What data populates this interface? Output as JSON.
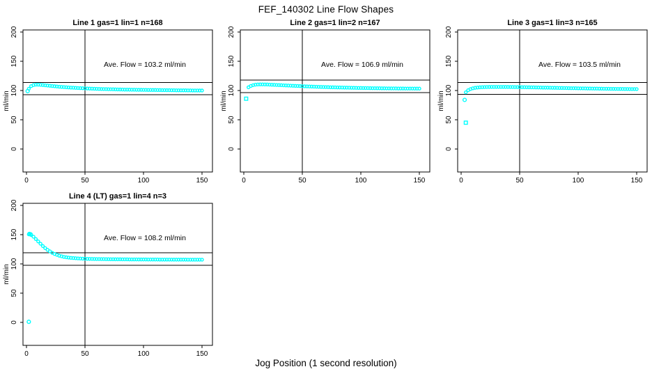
{
  "figure": {
    "title": "FEF_140302  Line Flow Shapes",
    "xlabel": "Jog Position (1 second resolution)",
    "ylabel": "ml/min",
    "background": "#ffffff",
    "point_color": "#00ffff",
    "line_color": "#000000"
  },
  "axes": {
    "x_ticks": [
      0,
      50,
      100,
      150
    ],
    "y_ticks": [
      0,
      50,
      100,
      150,
      200
    ],
    "xlim": [
      -3,
      159
    ],
    "ylim": [
      -40,
      204
    ],
    "grid": false
  },
  "chart_data": [
    {
      "type": "scatter",
      "title": "Line 1 gas=1 lin=1 n=168",
      "annotation": "Ave. Flow =  103.2  ml/min",
      "ave_flow_ml_min": 103.2,
      "n": 168,
      "vline_x": 50,
      "hlines": [
        92.9,
        113.5
      ],
      "series": {
        "x_start": 2,
        "x_step": 2,
        "y": [
          103.0,
          107.5,
          109.3,
          110.0,
          110.0,
          109.7,
          109.3,
          108.9,
          108.5,
          108.1,
          107.7,
          107.3,
          106.9,
          106.5,
          106.2,
          105.9,
          105.6,
          105.3,
          105.0,
          104.8,
          104.5,
          104.3,
          104.1,
          103.9,
          103.7,
          103.5,
          103.3,
          103.2,
          103.0,
          102.9,
          102.7,
          102.6,
          102.5,
          102.4,
          102.3,
          102.2,
          102.1,
          102.0,
          101.9,
          101.8,
          101.7,
          101.6,
          101.6,
          101.5,
          101.4,
          101.4,
          101.3,
          101.2,
          101.2,
          101.1,
          101.1,
          101.0,
          101.0,
          100.9,
          100.9,
          100.8,
          100.8,
          100.7,
          100.7,
          100.6,
          100.6,
          100.5,
          100.5,
          100.4,
          100.4,
          100.3,
          100.3,
          100.3,
          100.2,
          100.2,
          100.1,
          100.1,
          100.1,
          100.0,
          100.0
        ]
      },
      "outliers": [
        {
          "x": 1,
          "y": 99,
          "marker": "circle"
        }
      ]
    },
    {
      "type": "scatter",
      "title": "Line 2 gas=1 lin=2 n=167",
      "annotation": "Ave. Flow =  106.9  ml/min",
      "ave_flow_ml_min": 106.9,
      "n": 167,
      "vline_x": 50,
      "hlines": [
        96.2,
        117.6
      ],
      "series": {
        "x_start": 4,
        "x_step": 2,
        "y": [
          105.5,
          107.8,
          109.2,
          110.0,
          110.4,
          110.5,
          110.5,
          110.4,
          110.3,
          110.1,
          109.9,
          109.7,
          109.5,
          109.3,
          109.1,
          108.9,
          108.7,
          108.5,
          108.3,
          108.1,
          107.9,
          107.8,
          107.6,
          107.4,
          107.2,
          107.1,
          106.9,
          106.8,
          106.6,
          106.5,
          106.3,
          106.2,
          106.0,
          105.9,
          105.8,
          105.6,
          105.5,
          105.4,
          105.3,
          105.2,
          105.1,
          105.0,
          104.9,
          104.8,
          104.7,
          104.6,
          104.5,
          104.4,
          104.4,
          104.3,
          104.2,
          104.2,
          104.1,
          104.0,
          104.0,
          103.9,
          103.9,
          103.8,
          103.8,
          103.7,
          103.7,
          103.6,
          103.6,
          103.6,
          103.5,
          103.5,
          103.5,
          103.4,
          103.4,
          103.4,
          103.4,
          103.3,
          103.3,
          103.3
        ]
      },
      "outliers": [
        {
          "x": 2,
          "y": 86,
          "marker": "square"
        }
      ]
    },
    {
      "type": "scatter",
      "title": "Line 3 gas=1 lin=3 n=165",
      "annotation": "Ave. Flow =  103.5  ml/min",
      "ave_flow_ml_min": 103.5,
      "n": 165,
      "vline_x": 50,
      "hlines": [
        93.2,
        113.9
      ],
      "series": {
        "x_start": 4,
        "x_step": 2,
        "y": [
          97.0,
          100.5,
          102.5,
          103.8,
          104.6,
          105.1,
          105.5,
          105.7,
          105.9,
          106.0,
          106.1,
          106.2,
          106.2,
          106.2,
          106.2,
          106.2,
          106.2,
          106.1,
          106.1,
          106.0,
          106.0,
          105.9,
          105.9,
          105.8,
          105.7,
          105.7,
          105.6,
          105.5,
          105.4,
          105.4,
          105.3,
          105.2,
          105.1,
          105.0,
          104.9,
          104.9,
          104.8,
          104.7,
          104.6,
          104.5,
          104.4,
          104.4,
          104.3,
          104.2,
          104.1,
          104.0,
          104.0,
          103.9,
          103.8,
          103.7,
          103.7,
          103.6,
          103.5,
          103.5,
          103.4,
          103.3,
          103.3,
          103.2,
          103.2,
          103.1,
          103.0,
          103.0,
          102.9,
          102.9,
          102.8,
          102.8,
          102.7,
          102.7,
          102.6,
          102.6,
          102.5,
          102.5,
          102.5,
          102.4
        ]
      },
      "outliers": [
        {
          "x": 3,
          "y": 84,
          "marker": "circle"
        },
        {
          "x": 4,
          "y": 45,
          "marker": "square"
        }
      ]
    },
    {
      "type": "scatter",
      "title": "Line 4 (LT) gas=1 lin=4 n=3",
      "annotation": "Ave. Flow =  108.2  ml/min",
      "ave_flow_ml_min": 108.2,
      "n": 3,
      "vline_x": 50,
      "hlines": [
        97.4,
        119.0
      ],
      "series": {
        "x_start": 2,
        "x_step": 2,
        "y": [
          150.5,
          149.5,
          146.5,
          142.5,
          138.5,
          134.5,
          130.5,
          127.0,
          124.0,
          121.5,
          119.0,
          117.0,
          115.5,
          114.0,
          113.0,
          112.0,
          111.3,
          110.8,
          110.3,
          110.0,
          109.7,
          109.4,
          109.2,
          109.0,
          108.9,
          108.7,
          108.6,
          108.5,
          108.4,
          108.3,
          108.3,
          108.2,
          108.2,
          108.1,
          108.1,
          108.0,
          108.0,
          107.9,
          107.9,
          107.9,
          107.8,
          107.8,
          107.8,
          107.7,
          107.7,
          107.7,
          107.7,
          107.6,
          107.6,
          107.6,
          107.6,
          107.5,
          107.5,
          107.5,
          107.5,
          107.5,
          107.4,
          107.4,
          107.4,
          107.4,
          107.4,
          107.4,
          107.3,
          107.3,
          107.3,
          107.3,
          107.3,
          107.3,
          107.2,
          107.2,
          107.2,
          107.2,
          107.2,
          107.2,
          107.2
        ]
      },
      "outliers": [
        {
          "x": 2,
          "y": 1,
          "marker": "circle"
        },
        {
          "x": 2.5,
          "y": 151.2,
          "marker": "circle"
        },
        {
          "x": 3.5,
          "y": 150.6,
          "marker": "circle"
        }
      ]
    }
  ]
}
